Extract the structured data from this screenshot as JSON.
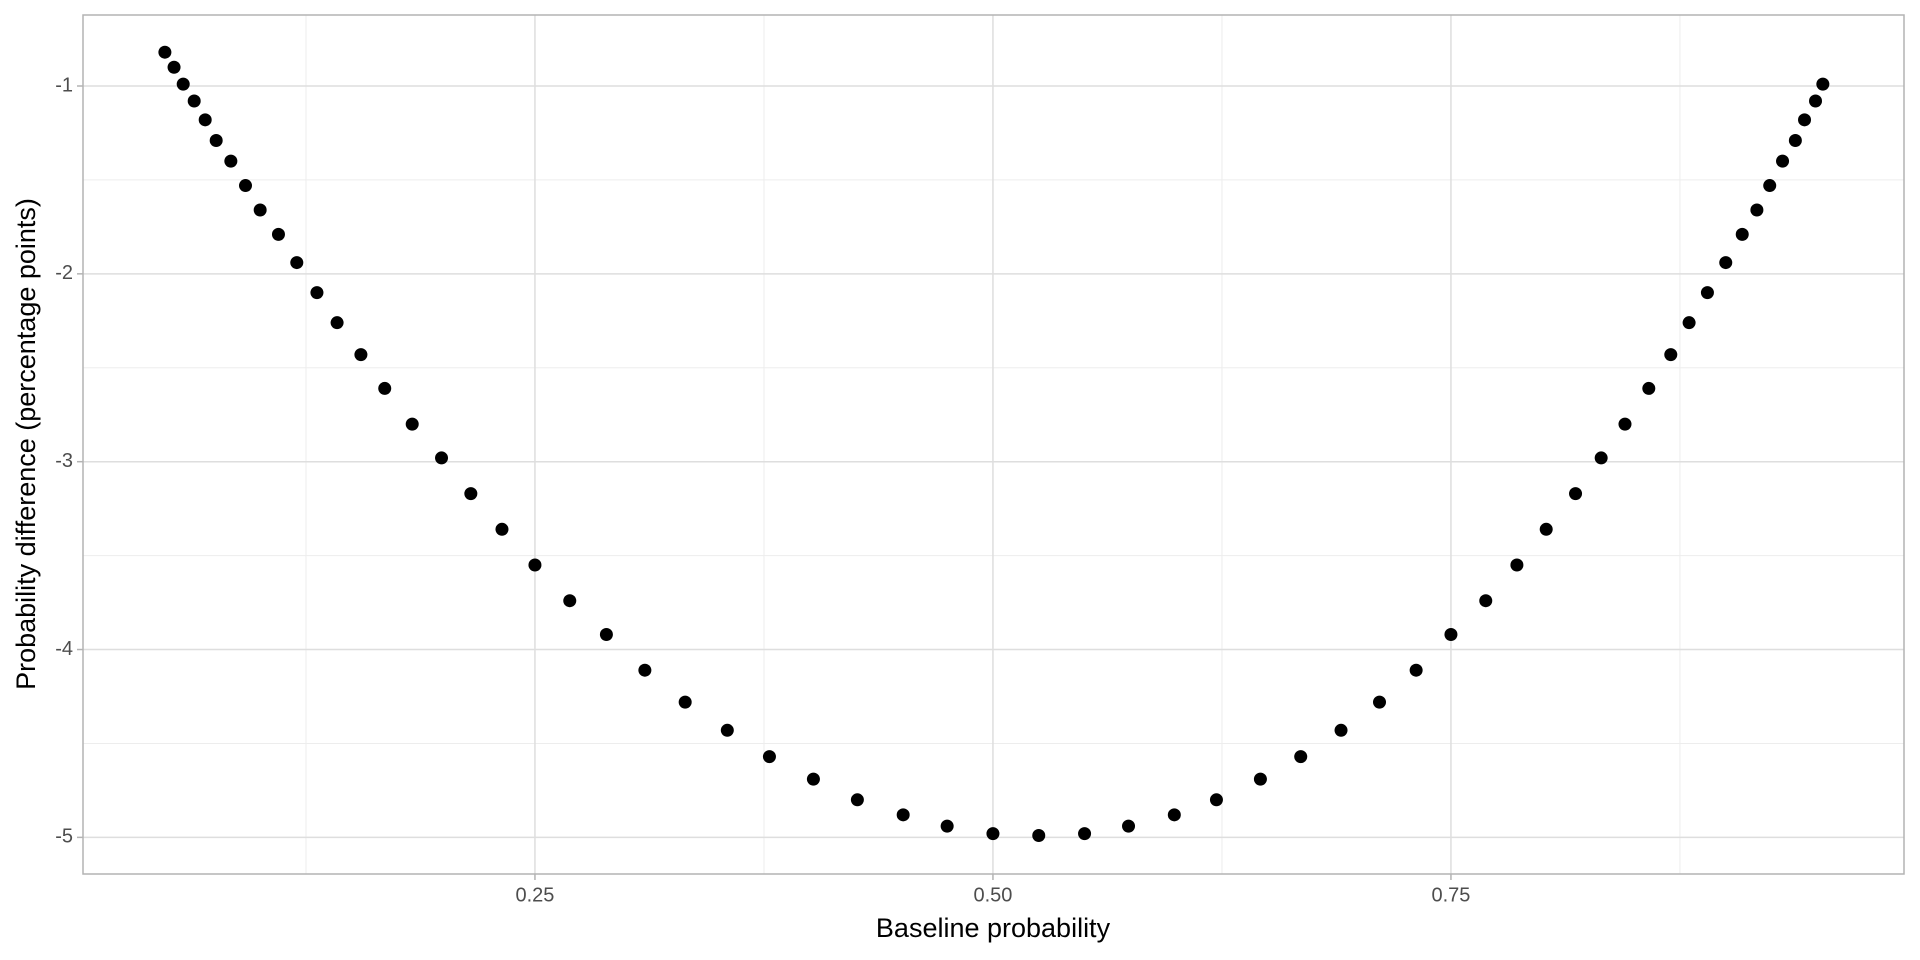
{
  "chart_data": {
    "type": "scatter",
    "xlabel": "Baseline probability",
    "ylabel": "Probability difference (percentage points)",
    "x": [
      0.048,
      0.053,
      0.058,
      0.064,
      0.07,
      0.076,
      0.084,
      0.092,
      0.1,
      0.11,
      0.12,
      0.131,
      0.142,
      0.155,
      0.168,
      0.183,
      0.199,
      0.215,
      0.232,
      0.25,
      0.269,
      0.289,
      0.31,
      0.332,
      0.355,
      0.378,
      0.402,
      0.426,
      0.451,
      0.475,
      0.5,
      0.525,
      0.55,
      0.574,
      0.599,
      0.622,
      0.646,
      0.668,
      0.69,
      0.711,
      0.731,
      0.75,
      0.769,
      0.786,
      0.802,
      0.818,
      0.832,
      0.845,
      0.858,
      0.87,
      0.88,
      0.89,
      0.9,
      0.909,
      0.917,
      0.924,
      0.931,
      0.938,
      0.943,
      0.949,
      0.953
    ],
    "values": [
      -0.82,
      -0.9,
      -0.99,
      -1.08,
      -1.18,
      -1.29,
      -1.4,
      -1.53,
      -1.66,
      -1.79,
      -1.94,
      -2.1,
      -2.26,
      -2.43,
      -2.61,
      -2.8,
      -2.98,
      -3.17,
      -3.36,
      -3.55,
      -3.74,
      -3.92,
      -4.11,
      -4.28,
      -4.43,
      -4.57,
      -4.69,
      -4.8,
      -4.88,
      -4.94,
      -4.98,
      -4.99,
      -4.98,
      -4.94,
      -4.88,
      -4.8,
      -4.69,
      -4.57,
      -4.43,
      -4.28,
      -4.11,
      -3.92,
      -3.74,
      -3.55,
      -3.36,
      -3.17,
      -2.98,
      -2.8,
      -2.61,
      -2.43,
      -2.26,
      -2.1,
      -1.94,
      -1.79,
      -1.66,
      -1.53,
      -1.4,
      -1.29,
      -1.18,
      -1.08,
      -0.99
    ],
    "color": "#000000",
    "xlim": [
      0.0033,
      0.9973
    ],
    "ylim": [
      -5.195,
      -0.622
    ],
    "xticks": [
      0.25,
      {
        "value": 0.5,
        "label": "0.50"
      },
      0.75
    ],
    "yticks": [
      -1,
      -2,
      -3,
      -4,
      -5
    ],
    "x_minor_grid": [
      0.125,
      0.375,
      0.625,
      0.875
    ],
    "y_minor_grid": [
      -1.5,
      -2.5,
      -3.5,
      -4.5
    ],
    "grid": true
  }
}
